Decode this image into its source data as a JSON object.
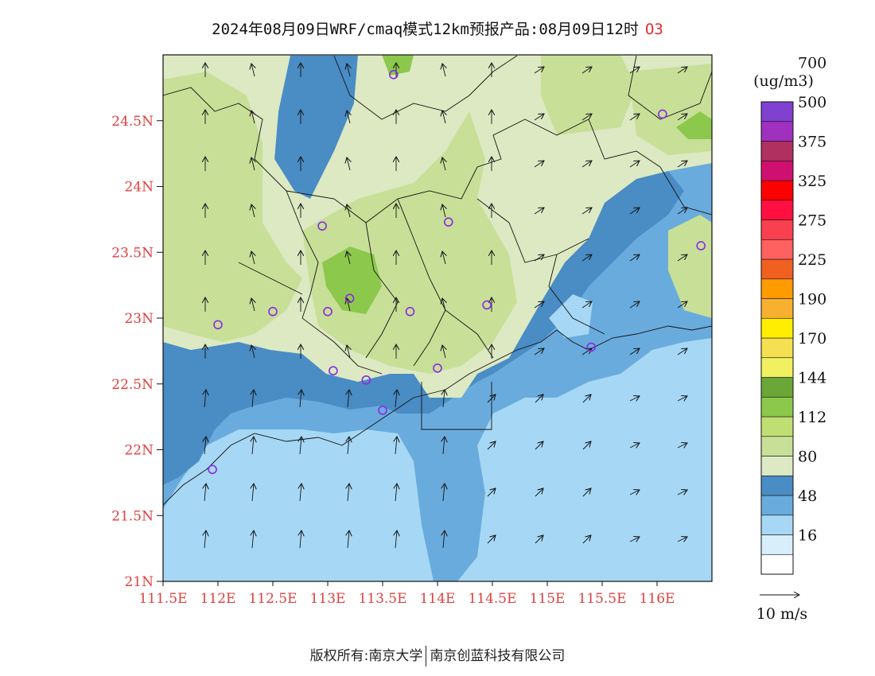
{
  "title": {
    "main": "2024年08月09日WRF/cmaq模式12km预报产品:08月09日12时",
    "species": "O3"
  },
  "map": {
    "lon_range": [
      111.5,
      116.5
    ],
    "lat_range": [
      21,
      25
    ],
    "x_ticks": [
      "111.5E",
      "112E",
      "112.5E",
      "113E",
      "113.5E",
      "114E",
      "114.5E",
      "115E",
      "115.5E",
      "116E"
    ],
    "x_tick_values": [
      111.5,
      112,
      112.5,
      113,
      113.5,
      114,
      114.5,
      115,
      115.5,
      116
    ],
    "y_ticks": [
      "24.5N",
      "24N",
      "23.5N",
      "23N",
      "22.5N",
      "22N",
      "21.5N",
      "21N"
    ],
    "y_tick_values": [
      24.5,
      24,
      23.5,
      23,
      22.5,
      22,
      21.5,
      21
    ],
    "stations": [
      {
        "lon": 113.6,
        "lat": 24.85
      },
      {
        "lon": 116.05,
        "lat": 24.55
      },
      {
        "lon": 112.95,
        "lat": 23.7
      },
      {
        "lon": 114.1,
        "lat": 23.73
      },
      {
        "lon": 116.4,
        "lat": 23.55
      },
      {
        "lon": 112.5,
        "lat": 23.05
      },
      {
        "lon": 113.0,
        "lat": 23.05
      },
      {
        "lon": 113.2,
        "lat": 23.15
      },
      {
        "lon": 113.75,
        "lat": 23.05
      },
      {
        "lon": 114.45,
        "lat": 23.1
      },
      {
        "lon": 112.0,
        "lat": 22.95
      },
      {
        "lon": 115.4,
        "lat": 22.78
      },
      {
        "lon": 113.05,
        "lat": 22.6
      },
      {
        "lon": 113.35,
        "lat": 22.53
      },
      {
        "lon": 114.0,
        "lat": 22.62
      },
      {
        "lon": 113.5,
        "lat": 22.3
      },
      {
        "lon": 111.95,
        "lat": 21.85
      }
    ]
  },
  "colorbar": {
    "unit": "(ug/m3)",
    "colors": [
      "#ffffff",
      "#d8eefb",
      "#a6d8f5",
      "#6aabdd",
      "#4a8cc4",
      "#dce9c2",
      "#c8df98",
      "#bfdf72",
      "#8cc84c",
      "#6aa638",
      "#f0f060",
      "#f4e050",
      "#ffee00",
      "#f8b030",
      "#ff9a00",
      "#f06020",
      "#ff6060",
      "#f84050",
      "#ff1040",
      "#ff0000",
      "#d01070",
      "#b03060",
      "#a030c0",
      "#8040d0"
    ],
    "labels": [
      {
        "text": "16",
        "index": 2
      },
      {
        "text": "48",
        "index": 4
      },
      {
        "text": "80",
        "index": 6
      },
      {
        "text": "112",
        "index": 8
      },
      {
        "text": "144",
        "index": 10
      },
      {
        "text": "170",
        "index": 12
      },
      {
        "text": "190",
        "index": 14
      },
      {
        "text": "225",
        "index": 16
      },
      {
        "text": "275",
        "index": 18
      },
      {
        "text": "325",
        "index": 20
      },
      {
        "text": "375",
        "index": 22
      },
      {
        "text": "500",
        "index": 24
      },
      {
        "text": "700",
        "index": 26
      }
    ]
  },
  "wind_legend": {
    "label": "10 m/s"
  },
  "footer": {
    "left": "版权所有:南京大学",
    "right": "南京创蓝科技有限公司"
  }
}
